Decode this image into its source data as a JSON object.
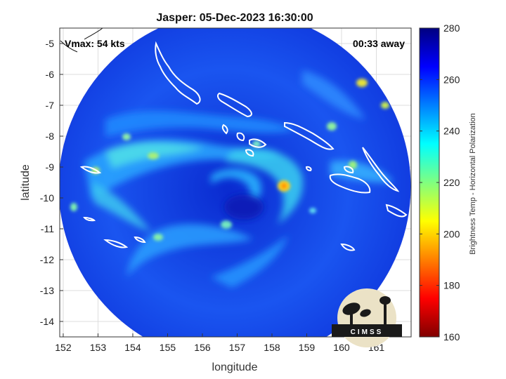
{
  "chart_data": {
    "type": "heatmap",
    "title": "Jasper: 05-Dec-2023 16:30:00",
    "xlabel": "longitude",
    "ylabel": "latitude",
    "xlim": [
      151.9,
      162.0
    ],
    "ylim": [
      -14.5,
      -4.5
    ],
    "x_ticks": [
      152,
      153,
      154,
      155,
      156,
      157,
      158,
      159,
      160,
      161
    ],
    "y_ticks": [
      -5,
      -6,
      -7,
      -8,
      -9,
      -10,
      -11,
      -12,
      -13,
      -14
    ],
    "grid": true,
    "annotations": {
      "vmax": "Vmax: 54 kts",
      "time_away": "00:33 away"
    },
    "storm_center": {
      "lon": 156.9,
      "lat": -10.2
    },
    "colorbar": {
      "label": "Brightness Temp - Horizontal Polarization",
      "min": 160,
      "max": 280,
      "ticks": [
        280,
        260,
        240,
        220,
        200,
        180,
        160
      ],
      "colormap": "jet"
    },
    "logo_text": "CIMSS"
  }
}
